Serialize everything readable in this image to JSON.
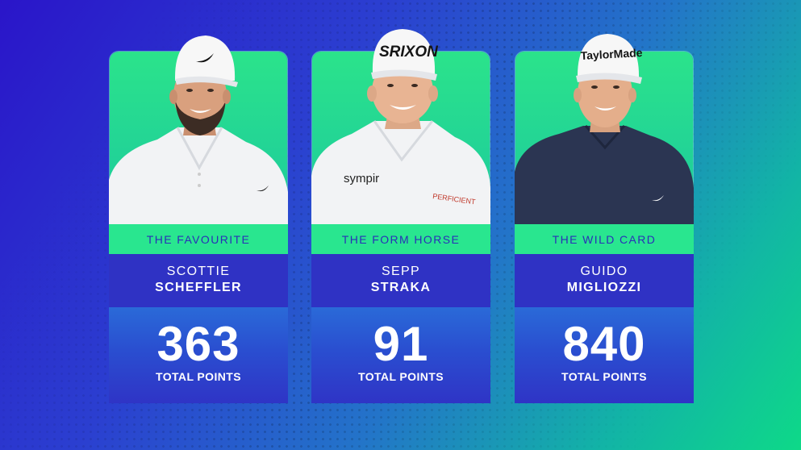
{
  "cards": [
    {
      "role": "THE FAVOURITE",
      "first_name": "SCOTTIE",
      "last_name": "SCHEFFLER",
      "points": "363",
      "points_label": "TOTAL POINTS",
      "cap_logo": "nike-swoosh-icon",
      "shirt_color": "#f2f3f5"
    },
    {
      "role": "THE FORM HORSE",
      "first_name": "SEPP",
      "last_name": "STRAKA",
      "points": "91",
      "points_label": "TOTAL POINTS",
      "cap_text": "SRIXON",
      "sponsor_left": "sympir",
      "sponsor_right": "PERFICIENT",
      "shirt_color": "#f2f3f5"
    },
    {
      "role": "THE WILD CARD",
      "first_name": "GUIDO",
      "last_name": "MIGLIOZZI",
      "points": "840",
      "points_label": "TOTAL POINTS",
      "cap_text": "TaylorMade",
      "shirt_color": "#2b3552"
    }
  ],
  "colors": {
    "accent_green": "#29e68f",
    "name_blue": "#2f32c4",
    "role_text": "#2a2fb8"
  }
}
